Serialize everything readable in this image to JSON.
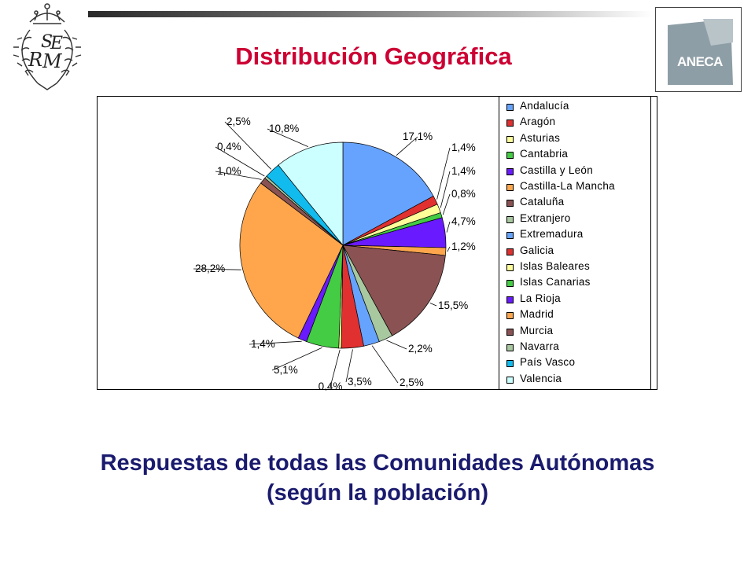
{
  "slide": {
    "title": "Distribución Geográfica",
    "subtitle_line1": "Respuestas de todas las Comunidades Autónomas",
    "subtitle_line2": "(según la población)"
  },
  "logos": {
    "left": "RSME",
    "right": "ANECA"
  },
  "colors": {
    "title": "#cc0033",
    "subtitle": "#1a1a6e"
  },
  "chart_data": {
    "type": "pie",
    "title": "",
    "legend_position": "right",
    "categories": [
      "Andalucía",
      "Aragón",
      "Asturias",
      "Cantabria",
      "Castilla y León",
      "Castilla-La Mancha",
      "Cataluña",
      "Extranjero",
      "Extremadura",
      "Galicia",
      "Islas Baleares",
      "Islas Canarias",
      "La Rioja",
      "Madrid",
      "Murcia",
      "Navarra",
      "País Vasco",
      "Valencia"
    ],
    "values": [
      17.1,
      1.4,
      1.4,
      0.8,
      4.7,
      1.2,
      15.5,
      2.2,
      2.5,
      3.5,
      0.4,
      5.1,
      1.4,
      28.2,
      1.0,
      0.4,
      2.5,
      10.8
    ],
    "labels": [
      "17,1%",
      "1,4%",
      "1,4%",
      "0,8%",
      "4,7%",
      "1,2%",
      "15,5%",
      "2,2%",
      "2,5%",
      "3,5%",
      "0,4%",
      "5,1%",
      "1,4%",
      "28,2%",
      "1,0%",
      "0,4%",
      "2,5%",
      "10,8%"
    ],
    "colors": [
      "#66a3ff",
      "#e03030",
      "#ffff99",
      "#44cc44",
      "#6a1aff",
      "#ffa64d",
      "#8a5252",
      "#a8c8a0",
      "#66a3ff",
      "#e03030",
      "#ffff99",
      "#44cc44",
      "#6a1aff",
      "#ffa64d",
      "#8a5252",
      "#a8c8a0",
      "#11bbee",
      "#ccffff"
    ]
  }
}
